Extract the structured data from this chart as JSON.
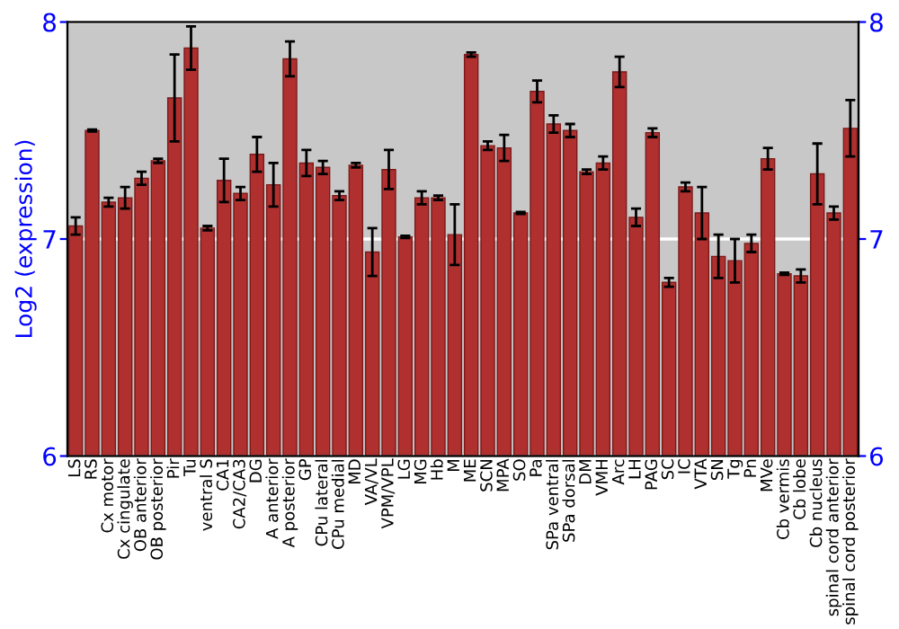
{
  "chart_data": {
    "type": "bar",
    "ylabel": "Log2 (expression)",
    "categories": [
      "LS",
      "RS",
      "Cx motor",
      "Cx cingulate",
      "OB anterior",
      "OB posterior",
      "Pir",
      "Tu",
      "ventral S",
      "CA1",
      "CA2/CA3",
      "DG",
      "A anterior",
      "A posterior",
      "GP",
      "CPu lateral",
      "CPu medial",
      "MD",
      "VA/VL",
      "VPM/VPL",
      "LG",
      "MG",
      "Hb",
      "M",
      "ME",
      "SCN",
      "MPA",
      "SO",
      "Pa",
      "SPa ventral",
      "SPa dorsal",
      "DM",
      "VMH",
      "Arc",
      "LH",
      "PAG",
      "SC",
      "IC",
      "VTA",
      "SN",
      "Tg",
      "Pn",
      "MVe",
      "Cb vermis",
      "Cb lobe",
      "Cb nucleus",
      "spinal cord anterior",
      "spinal cord posterior"
    ],
    "values": [
      7.06,
      7.5,
      7.17,
      7.19,
      7.28,
      7.36,
      7.65,
      7.88,
      7.05,
      7.27,
      7.21,
      7.39,
      7.25,
      7.83,
      7.35,
      7.33,
      7.2,
      7.34,
      6.94,
      7.32,
      7.01,
      7.19,
      7.19,
      7.02,
      7.85,
      7.43,
      7.42,
      7.12,
      7.68,
      7.53,
      7.5,
      7.31,
      7.35,
      7.77,
      7.1,
      7.49,
      6.8,
      7.24,
      7.12,
      6.92,
      6.9,
      6.98,
      7.37,
      6.84,
      6.83,
      7.3,
      7.12,
      7.51
    ],
    "errors": [
      0.04,
      0.005,
      0.02,
      0.05,
      0.03,
      0.01,
      0.2,
      0.1,
      0.01,
      0.1,
      0.03,
      0.08,
      0.1,
      0.08,
      0.06,
      0.03,
      0.02,
      0.01,
      0.11,
      0.09,
      0.005,
      0.03,
      0.01,
      0.14,
      0.01,
      0.02,
      0.06,
      0.005,
      0.05,
      0.04,
      0.03,
      0.01,
      0.03,
      0.07,
      0.04,
      0.02,
      0.02,
      0.02,
      0.12,
      0.1,
      0.1,
      0.04,
      0.05,
      0.005,
      0.03,
      0.14,
      0.03,
      0.13
    ],
    "color": "#b03030",
    "ylim": [
      6,
      8
    ],
    "yticks": [
      6,
      7,
      8
    ],
    "y2lim": [
      6,
      8
    ],
    "y2ticks": [
      6,
      7,
      8
    ],
    "grid": "y"
  }
}
